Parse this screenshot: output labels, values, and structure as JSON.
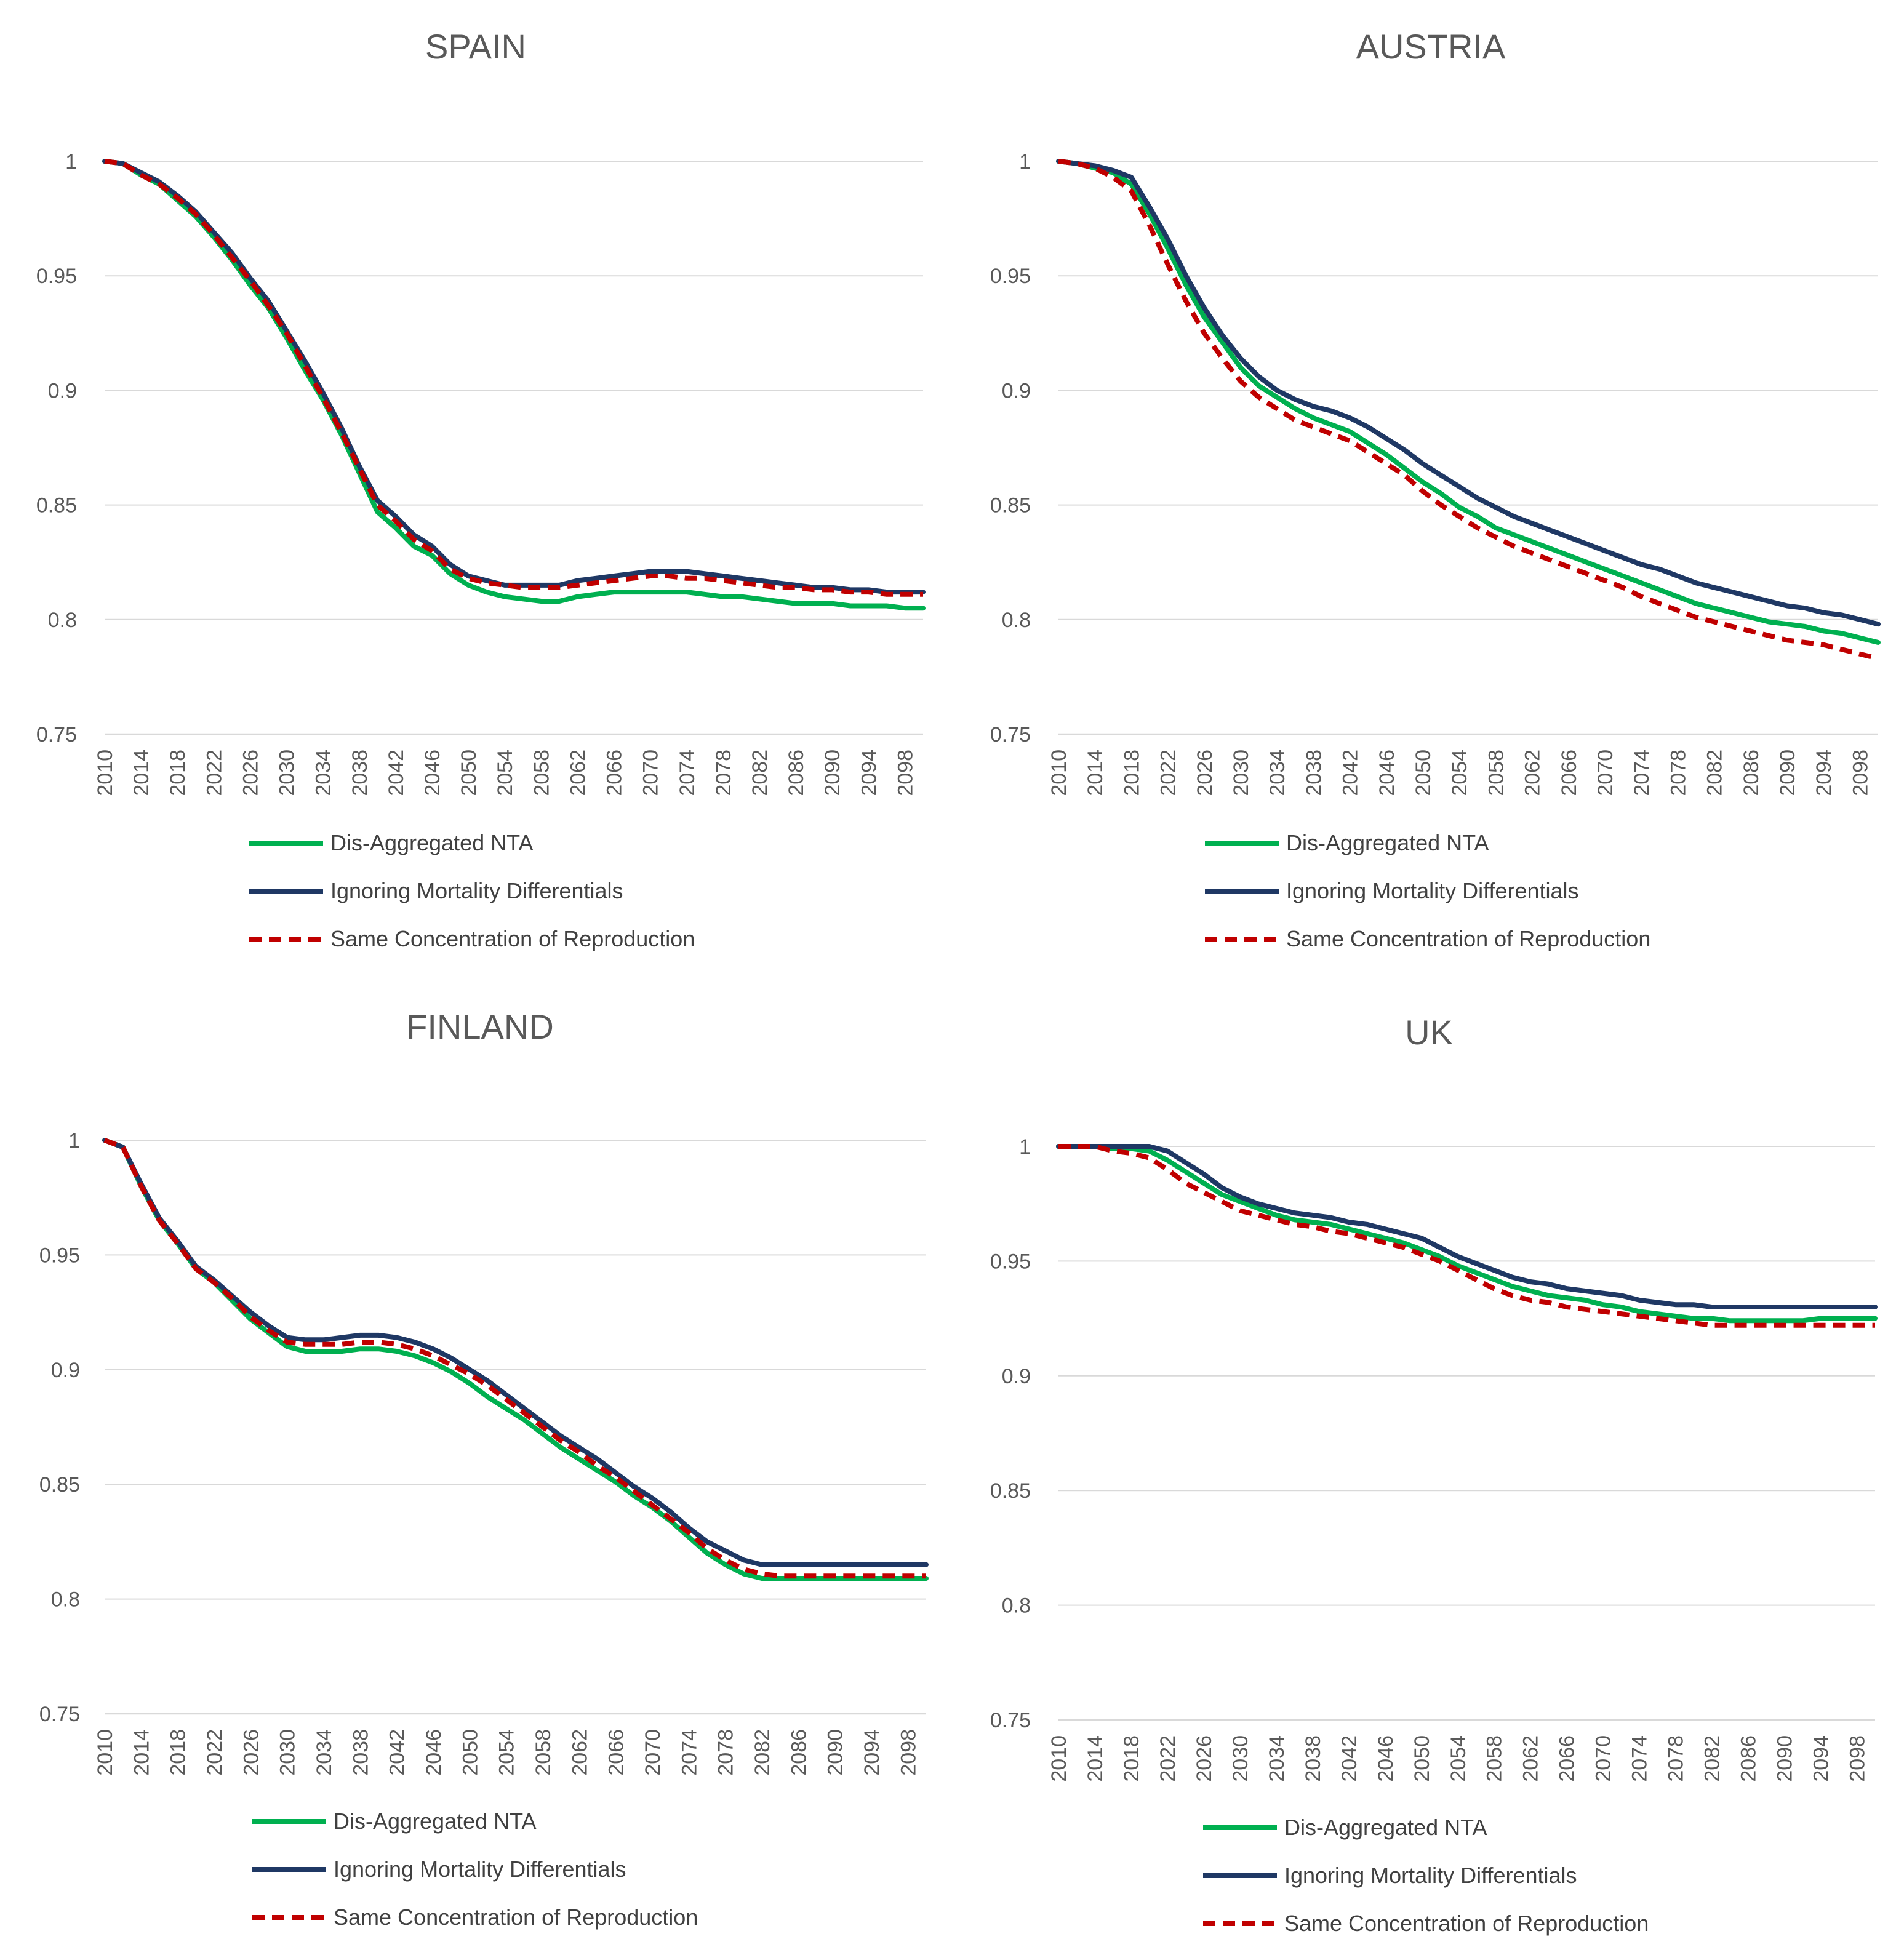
{
  "chart_data": [
    {
      "type": "line",
      "title": "SPAIN",
      "xlabel": "",
      "ylabel": "",
      "xlim": [
        2010,
        2100
      ],
      "ylim": [
        0.75,
        1.0
      ],
      "y_ticks": [
        "0.75",
        "0.8",
        "0.85",
        "0.9",
        "0.95",
        "1"
      ],
      "x_ticks": [
        "2010",
        "2014",
        "2018",
        "2022",
        "2026",
        "2030",
        "2034",
        "2038",
        "2042",
        "2046",
        "2050",
        "2054",
        "2058",
        "2062",
        "2066",
        "2070",
        "2074",
        "2078",
        "2082",
        "2086",
        "2090",
        "2094",
        "2098"
      ],
      "grid": true,
      "legend": "bottom",
      "x": [
        2010,
        2012,
        2014,
        2016,
        2018,
        2020,
        2022,
        2024,
        2026,
        2028,
        2030,
        2032,
        2034,
        2036,
        2038,
        2040,
        2042,
        2044,
        2046,
        2048,
        2050,
        2052,
        2054,
        2056,
        2058,
        2060,
        2062,
        2064,
        2066,
        2068,
        2070,
        2072,
        2074,
        2076,
        2078,
        2080,
        2082,
        2084,
        2086,
        2088,
        2090,
        2092,
        2094,
        2096,
        2098,
        2100
      ],
      "series": [
        {
          "name": "Dis-Aggregated NTA",
          "color": "#00b050",
          "dash": "solid",
          "values": [
            1.0,
            0.999,
            0.994,
            0.99,
            0.983,
            0.976,
            0.967,
            0.957,
            0.946,
            0.936,
            0.923,
            0.909,
            0.896,
            0.881,
            0.864,
            0.847,
            0.84,
            0.832,
            0.828,
            0.82,
            0.815,
            0.812,
            0.81,
            0.809,
            0.808,
            0.808,
            0.81,
            0.811,
            0.812,
            0.812,
            0.812,
            0.812,
            0.812,
            0.811,
            0.81,
            0.81,
            0.809,
            0.808,
            0.807,
            0.807,
            0.807,
            0.806,
            0.806,
            0.806,
            0.805,
            0.805
          ]
        },
        {
          "name": "Ignoring Mortality Differentials",
          "color": "#1f3864",
          "dash": "solid",
          "values": [
            1.0,
            0.999,
            0.995,
            0.991,
            0.985,
            0.978,
            0.969,
            0.96,
            0.949,
            0.939,
            0.926,
            0.913,
            0.899,
            0.884,
            0.867,
            0.852,
            0.845,
            0.837,
            0.832,
            0.824,
            0.819,
            0.817,
            0.815,
            0.815,
            0.815,
            0.815,
            0.817,
            0.818,
            0.819,
            0.82,
            0.821,
            0.821,
            0.821,
            0.82,
            0.819,
            0.818,
            0.817,
            0.816,
            0.815,
            0.814,
            0.814,
            0.813,
            0.813,
            0.812,
            0.812,
            0.812
          ]
        },
        {
          "name": "Same Concentration of Reproduction",
          "color": "#c00000",
          "dash": "dashed",
          "values": [
            1.0,
            0.999,
            0.994,
            0.99,
            0.984,
            0.977,
            0.968,
            0.958,
            0.948,
            0.937,
            0.925,
            0.911,
            0.897,
            0.882,
            0.866,
            0.85,
            0.843,
            0.835,
            0.83,
            0.822,
            0.818,
            0.816,
            0.815,
            0.814,
            0.814,
            0.814,
            0.815,
            0.816,
            0.817,
            0.818,
            0.819,
            0.819,
            0.818,
            0.818,
            0.817,
            0.816,
            0.815,
            0.814,
            0.814,
            0.813,
            0.813,
            0.812,
            0.812,
            0.811,
            0.811,
            0.811
          ]
        }
      ]
    },
    {
      "type": "line",
      "title": "AUSTRIA",
      "xlabel": "",
      "ylabel": "",
      "xlim": [
        2010,
        2100
      ],
      "ylim": [
        0.75,
        1.0
      ],
      "y_ticks": [
        "0.75",
        "0.8",
        "0.85",
        "0.9",
        "0.95",
        "1"
      ],
      "x_ticks": [
        "2010",
        "2014",
        "2018",
        "2022",
        "2026",
        "2030",
        "2034",
        "2038",
        "2042",
        "2046",
        "2050",
        "2054",
        "2058",
        "2062",
        "2066",
        "2070",
        "2074",
        "2078",
        "2082",
        "2086",
        "2090",
        "2094",
        "2098"
      ],
      "grid": true,
      "legend": "bottom",
      "x": [
        2010,
        2012,
        2014,
        2016,
        2018,
        2020,
        2022,
        2024,
        2026,
        2028,
        2030,
        2032,
        2034,
        2036,
        2038,
        2040,
        2042,
        2044,
        2046,
        2048,
        2050,
        2052,
        2054,
        2056,
        2058,
        2060,
        2062,
        2064,
        2066,
        2068,
        2070,
        2072,
        2074,
        2076,
        2078,
        2080,
        2082,
        2084,
        2086,
        2088,
        2090,
        2092,
        2094,
        2096,
        2098,
        2100
      ],
      "series": [
        {
          "name": "Dis-Aggregated NTA",
          "color": "#00b050",
          "dash": "solid",
          "values": [
            1.0,
            0.999,
            0.997,
            0.995,
            0.99,
            0.977,
            0.962,
            0.946,
            0.932,
            0.921,
            0.91,
            0.902,
            0.897,
            0.892,
            0.888,
            0.885,
            0.882,
            0.877,
            0.872,
            0.866,
            0.86,
            0.855,
            0.849,
            0.845,
            0.84,
            0.837,
            0.834,
            0.831,
            0.828,
            0.825,
            0.822,
            0.819,
            0.816,
            0.813,
            0.81,
            0.807,
            0.805,
            0.803,
            0.801,
            0.799,
            0.798,
            0.797,
            0.795,
            0.794,
            0.792,
            0.79
          ]
        },
        {
          "name": "Ignoring Mortality Differentials",
          "color": "#1f3864",
          "dash": "solid",
          "values": [
            1.0,
            0.999,
            0.998,
            0.996,
            0.993,
            0.98,
            0.966,
            0.95,
            0.936,
            0.924,
            0.914,
            0.906,
            0.9,
            0.896,
            0.893,
            0.891,
            0.888,
            0.884,
            0.879,
            0.874,
            0.868,
            0.863,
            0.858,
            0.853,
            0.849,
            0.845,
            0.842,
            0.839,
            0.836,
            0.833,
            0.83,
            0.827,
            0.824,
            0.822,
            0.819,
            0.816,
            0.814,
            0.812,
            0.81,
            0.808,
            0.806,
            0.805,
            0.803,
            0.802,
            0.8,
            0.798
          ]
        },
        {
          "name": "Same Concentration of Reproduction",
          "color": "#c00000",
          "dash": "dashed",
          "values": [
            1.0,
            0.999,
            0.997,
            0.993,
            0.987,
            0.972,
            0.955,
            0.939,
            0.925,
            0.914,
            0.904,
            0.897,
            0.892,
            0.887,
            0.884,
            0.881,
            0.878,
            0.873,
            0.868,
            0.863,
            0.856,
            0.85,
            0.845,
            0.84,
            0.836,
            0.832,
            0.829,
            0.826,
            0.823,
            0.82,
            0.817,
            0.814,
            0.81,
            0.807,
            0.804,
            0.801,
            0.799,
            0.797,
            0.795,
            0.793,
            0.791,
            0.79,
            0.789,
            0.787,
            0.785,
            0.783
          ]
        }
      ]
    },
    {
      "type": "line",
      "title": "FINLAND",
      "xlabel": "",
      "ylabel": "",
      "xlim": [
        2010,
        2100
      ],
      "ylim": [
        0.75,
        1.0
      ],
      "y_ticks": [
        "0.75",
        "0.8",
        "0.85",
        "0.9",
        "0.95",
        "1"
      ],
      "x_ticks": [
        "2010",
        "2014",
        "2018",
        "2022",
        "2026",
        "2030",
        "2034",
        "2038",
        "2042",
        "2046",
        "2050",
        "2054",
        "2058",
        "2062",
        "2066",
        "2070",
        "2074",
        "2078",
        "2082",
        "2086",
        "2090",
        "2094",
        "2098"
      ],
      "grid": true,
      "legend": "bottom",
      "x": [
        2010,
        2012,
        2014,
        2016,
        2018,
        2020,
        2022,
        2024,
        2026,
        2028,
        2030,
        2032,
        2034,
        2036,
        2038,
        2040,
        2042,
        2044,
        2046,
        2048,
        2050,
        2052,
        2054,
        2056,
        2058,
        2060,
        2062,
        2064,
        2066,
        2068,
        2070,
        2072,
        2074,
        2076,
        2078,
        2080,
        2082,
        2084,
        2086,
        2088,
        2090,
        2092,
        2094,
        2096,
        2098,
        2100
      ],
      "series": [
        {
          "name": "Dis-Aggregated NTA",
          "color": "#00b050",
          "dash": "solid",
          "values": [
            1.0,
            0.997,
            0.98,
            0.965,
            0.955,
            0.944,
            0.938,
            0.93,
            0.922,
            0.916,
            0.91,
            0.908,
            0.908,
            0.908,
            0.909,
            0.909,
            0.908,
            0.906,
            0.903,
            0.899,
            0.894,
            0.888,
            0.883,
            0.878,
            0.872,
            0.866,
            0.861,
            0.856,
            0.851,
            0.845,
            0.84,
            0.834,
            0.827,
            0.82,
            0.815,
            0.811,
            0.809,
            0.809,
            0.809,
            0.809,
            0.809,
            0.809,
            0.809,
            0.809,
            0.809,
            0.809
          ]
        },
        {
          "name": "Ignoring Mortality Differentials",
          "color": "#1f3864",
          "dash": "solid",
          "values": [
            1.0,
            0.997,
            0.981,
            0.966,
            0.956,
            0.945,
            0.939,
            0.932,
            0.925,
            0.919,
            0.914,
            0.913,
            0.913,
            0.914,
            0.915,
            0.915,
            0.914,
            0.912,
            0.909,
            0.905,
            0.9,
            0.895,
            0.889,
            0.883,
            0.877,
            0.871,
            0.866,
            0.861,
            0.855,
            0.849,
            0.844,
            0.838,
            0.831,
            0.825,
            0.821,
            0.817,
            0.815,
            0.815,
            0.815,
            0.815,
            0.815,
            0.815,
            0.815,
            0.815,
            0.815,
            0.815
          ]
        },
        {
          "name": "Same Concentration of Reproduction",
          "color": "#c00000",
          "dash": "dashed",
          "values": [
            1.0,
            0.997,
            0.98,
            0.965,
            0.955,
            0.944,
            0.938,
            0.931,
            0.923,
            0.917,
            0.912,
            0.911,
            0.911,
            0.911,
            0.912,
            0.912,
            0.911,
            0.909,
            0.906,
            0.902,
            0.898,
            0.893,
            0.887,
            0.881,
            0.875,
            0.869,
            0.864,
            0.858,
            0.853,
            0.847,
            0.841,
            0.835,
            0.829,
            0.822,
            0.817,
            0.813,
            0.811,
            0.81,
            0.81,
            0.81,
            0.81,
            0.81,
            0.81,
            0.81,
            0.81,
            0.81
          ]
        }
      ]
    },
    {
      "type": "line",
      "title": "UK",
      "xlabel": "",
      "ylabel": "",
      "xlim": [
        2010,
        2100
      ],
      "ylim": [
        0.75,
        1.0
      ],
      "y_ticks": [
        "0.75",
        "0.8",
        "0.85",
        "0.9",
        "0.95",
        "1"
      ],
      "x_ticks": [
        "2010",
        "2014",
        "2018",
        "2022",
        "2026",
        "2030",
        "2034",
        "2038",
        "2042",
        "2046",
        "2050",
        "2054",
        "2058",
        "2062",
        "2066",
        "2070",
        "2074",
        "2078",
        "2082",
        "2086",
        "2090",
        "2094",
        "2098"
      ],
      "grid": true,
      "legend": "bottom",
      "x": [
        2010,
        2012,
        2014,
        2016,
        2018,
        2020,
        2022,
        2024,
        2026,
        2028,
        2030,
        2032,
        2034,
        2036,
        2038,
        2040,
        2042,
        2044,
        2046,
        2048,
        2050,
        2052,
        2054,
        2056,
        2058,
        2060,
        2062,
        2064,
        2066,
        2068,
        2070,
        2072,
        2074,
        2076,
        2078,
        2080,
        2082,
        2084,
        2086,
        2088,
        2090,
        2092,
        2094,
        2096,
        2098,
        2100
      ],
      "series": [
        {
          "name": "Dis-Aggregated NTA",
          "color": "#00b050",
          "dash": "solid",
          "values": [
            1.0,
            1.0,
            1.0,
            0.999,
            0.999,
            0.998,
            0.994,
            0.989,
            0.984,
            0.979,
            0.976,
            0.973,
            0.97,
            0.968,
            0.967,
            0.966,
            0.964,
            0.962,
            0.96,
            0.958,
            0.955,
            0.952,
            0.948,
            0.945,
            0.942,
            0.939,
            0.937,
            0.935,
            0.934,
            0.933,
            0.931,
            0.93,
            0.928,
            0.927,
            0.926,
            0.925,
            0.925,
            0.924,
            0.924,
            0.924,
            0.924,
            0.924,
            0.925,
            0.925,
            0.925,
            0.925
          ]
        },
        {
          "name": "Ignoring Mortality Differentials",
          "color": "#1f3864",
          "dash": "solid",
          "values": [
            1.0,
            1.0,
            1.0,
            1.0,
            1.0,
            1.0,
            0.998,
            0.993,
            0.988,
            0.982,
            0.978,
            0.975,
            0.973,
            0.971,
            0.97,
            0.969,
            0.967,
            0.966,
            0.964,
            0.962,
            0.96,
            0.956,
            0.952,
            0.949,
            0.946,
            0.943,
            0.941,
            0.94,
            0.938,
            0.937,
            0.936,
            0.935,
            0.933,
            0.932,
            0.931,
            0.931,
            0.93,
            0.93,
            0.93,
            0.93,
            0.93,
            0.93,
            0.93,
            0.93,
            0.93,
            0.93
          ]
        },
        {
          "name": "Same Concentration of Reproduction",
          "color": "#c00000",
          "dash": "dashed",
          "values": [
            1.0,
            1.0,
            1.0,
            0.998,
            0.997,
            0.995,
            0.99,
            0.984,
            0.98,
            0.976,
            0.972,
            0.97,
            0.968,
            0.966,
            0.965,
            0.963,
            0.962,
            0.96,
            0.958,
            0.956,
            0.953,
            0.95,
            0.946,
            0.942,
            0.938,
            0.935,
            0.933,
            0.932,
            0.93,
            0.929,
            0.928,
            0.927,
            0.926,
            0.925,
            0.924,
            0.923,
            0.922,
            0.922,
            0.922,
            0.922,
            0.922,
            0.922,
            0.922,
            0.922,
            0.922,
            0.922
          ]
        }
      ]
    }
  ]
}
